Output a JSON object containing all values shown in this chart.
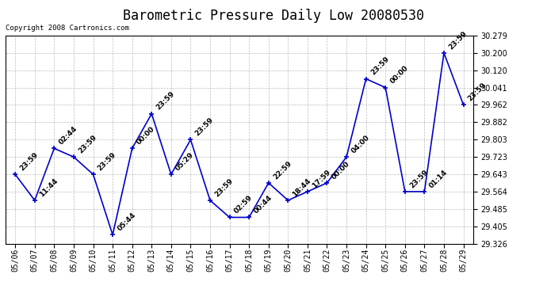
{
  "title": "Barometric Pressure Daily Low 20080530",
  "copyright": "Copyright 2008 Cartronics.com",
  "dates": [
    "05/06",
    "05/07",
    "05/08",
    "05/09",
    "05/10",
    "05/11",
    "05/12",
    "05/13",
    "05/14",
    "05/15",
    "05/16",
    "05/17",
    "05/18",
    "05/19",
    "05/20",
    "05/21",
    "05/22",
    "05/23",
    "05/24",
    "05/25",
    "05/26",
    "05/27",
    "05/28",
    "05/29"
  ],
  "values": [
    29.643,
    29.524,
    29.762,
    29.723,
    29.643,
    29.366,
    29.762,
    29.921,
    29.643,
    29.802,
    29.524,
    29.446,
    29.446,
    29.604,
    29.524,
    29.564,
    29.604,
    29.723,
    30.081,
    30.041,
    29.564,
    29.564,
    30.2,
    29.962
  ],
  "point_labels": [
    "23:59",
    "11:44",
    "02:44",
    "23:59",
    "23:59",
    "05:44",
    "00:00",
    "23:59",
    "05:29",
    "23:59",
    "23:59",
    "02:59",
    "00:44",
    "22:59",
    "18:44",
    "17:59",
    "00:00",
    "04:00",
    "23:59",
    "00:00",
    "23:59",
    "01:14",
    "23:59",
    "23:59"
  ],
  "line_color": "#0000cc",
  "marker_color": "#0000cc",
  "background_color": "#ffffff",
  "grid_color": "#bbbbbb",
  "ylim_min": 29.326,
  "ylim_max": 30.279,
  "yticks": [
    29.326,
    29.405,
    29.485,
    29.564,
    29.643,
    29.723,
    29.803,
    29.882,
    29.962,
    30.041,
    30.12,
    30.2,
    30.279
  ],
  "title_fontsize": 12,
  "label_fontsize": 6.5,
  "tick_fontsize": 7,
  "copyright_fontsize": 6.5
}
